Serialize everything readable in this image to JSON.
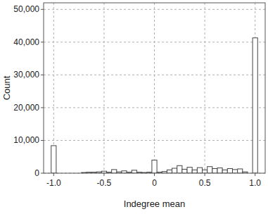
{
  "chart_data": {
    "type": "histogram",
    "x_label": "Indegree mean",
    "y_label": "Count",
    "bins": [
      -1.025,
      -0.975,
      -0.925,
      -0.875,
      -0.825,
      -0.775,
      -0.725,
      -0.675,
      -0.625,
      -0.575,
      -0.525,
      -0.475,
      -0.425,
      -0.375,
      -0.325,
      -0.275,
      -0.225,
      -0.175,
      -0.125,
      -0.075,
      -0.025,
      0.025,
      0.075,
      0.125,
      0.175,
      0.225,
      0.275,
      0.325,
      0.375,
      0.425,
      0.475,
      0.525,
      0.575,
      0.625,
      0.675,
      0.725,
      0.775,
      0.825,
      0.875,
      0.925,
      0.975,
      1.025
    ],
    "values": [
      8400,
      0,
      0,
      0,
      0,
      0,
      200,
      300,
      300,
      400,
      600,
      300,
      1100,
      400,
      700,
      300,
      900,
      300,
      200,
      300,
      4000,
      300,
      500,
      1000,
      1500,
      2300,
      1200,
      1800,
      1000,
      1700,
      1000,
      2000,
      1400,
      1600,
      1000,
      1400,
      1100,
      1300,
      400,
      0,
      41300
    ],
    "color": "#ffffff",
    "xlim": [
      -1.1,
      1.1
    ],
    "xticks": [
      {
        "value": -1,
        "label": "-1.0"
      },
      -0.5,
      0,
      0.5,
      {
        "value": 1,
        "label": "1.0"
      }
    ],
    "ylim": [
      0,
      52000
    ],
    "yticks": [
      0,
      {
        "value": 10000,
        "label": "10,000"
      },
      {
        "value": 20000,
        "label": "20,000"
      },
      {
        "value": 30000,
        "label": "30,000"
      },
      {
        "value": 40000,
        "label": "40,000"
      },
      {
        "value": 50000,
        "label": "50,000"
      }
    ],
    "grid": true
  }
}
